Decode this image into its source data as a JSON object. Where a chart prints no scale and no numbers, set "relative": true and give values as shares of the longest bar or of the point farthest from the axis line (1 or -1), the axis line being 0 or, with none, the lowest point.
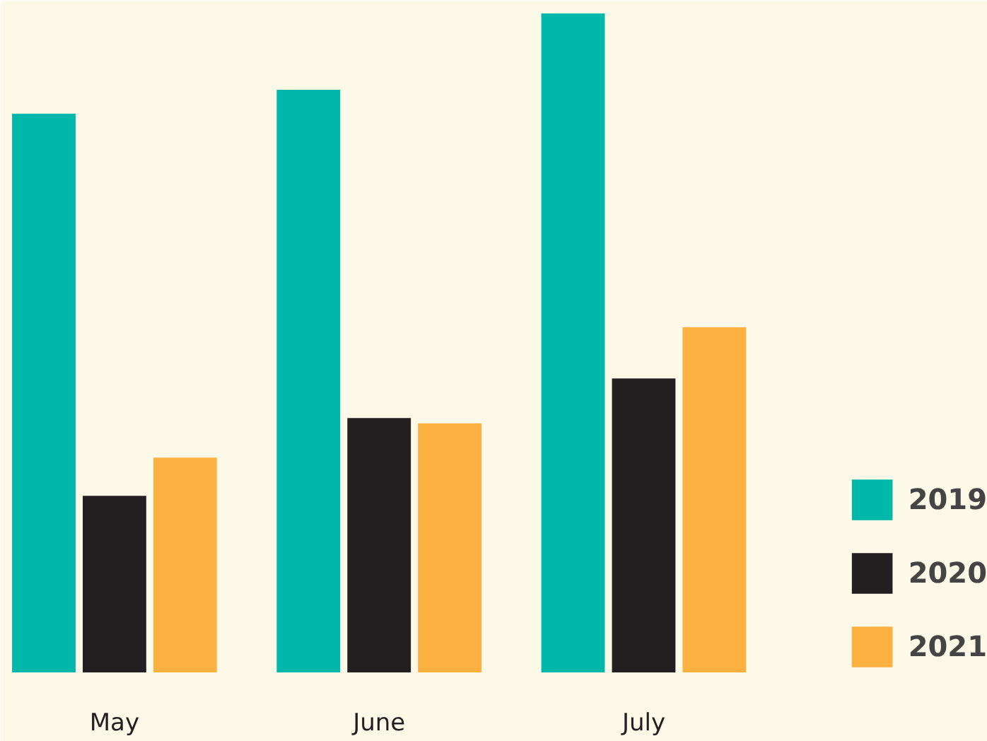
{
  "chart_data": {
    "type": "bar",
    "relative": true,
    "categories": [
      "May",
      "June",
      "July"
    ],
    "series": [
      {
        "name": "2019",
        "color": "#00b8a9",
        "values": [
          0.848,
          0.884,
          1
        ]
      },
      {
        "name": "2020",
        "color": "#231f20",
        "values": [
          0.268,
          0.386,
          0.446
        ]
      },
      {
        "name": "2021",
        "color": "#fbb040",
        "values": [
          0.326,
          0.378,
          0.524
        ]
      }
    ],
    "legend": "bottom right",
    "grid": false
  }
}
